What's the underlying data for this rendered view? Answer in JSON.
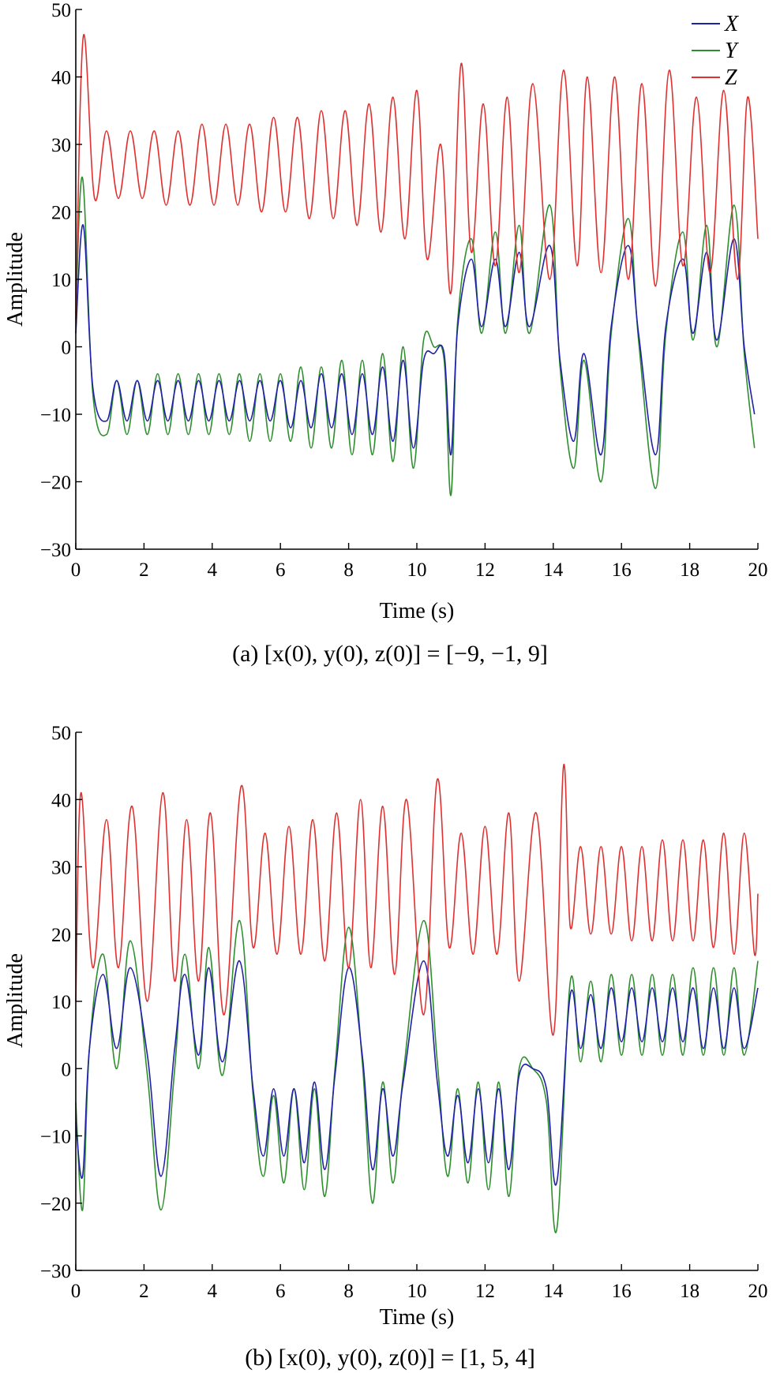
{
  "chart_data": [
    {
      "type": "line",
      "caption": "(a)  [x(0), y(0), z(0)] = [−9, −1, 9]",
      "xlabel": "Time (s)",
      "ylabel": "Amplitude",
      "xlim": [
        0,
        20
      ],
      "ylim": [
        -30,
        50
      ],
      "xticks": [
        "0",
        "2",
        "4",
        "6",
        "8",
        "10",
        "12",
        "14",
        "16",
        "18",
        "20"
      ],
      "yticks": [
        "−30",
        "−20",
        "−10",
        "0",
        "10",
        "20",
        "30",
        "40",
        "50"
      ],
      "grid": false,
      "legend_position": "top-right",
      "series": [
        {
          "name": "X",
          "color": "#2020a8",
          "x": [
            0,
            0.22,
            0.5,
            0.9,
            1.2,
            1.5,
            1.8,
            2.1,
            2.4,
            2.7,
            3.0,
            3.3,
            3.6,
            3.9,
            4.2,
            4.5,
            4.8,
            5.1,
            5.4,
            5.7,
            6.0,
            6.3,
            6.6,
            6.9,
            7.2,
            7.5,
            7.8,
            8.1,
            8.4,
            8.7,
            9.0,
            9.3,
            9.6,
            9.9,
            10.2,
            10.5,
            10.8,
            11.0,
            11.2,
            11.6,
            11.9,
            12.3,
            12.6,
            13.0,
            13.3,
            13.9,
            14.2,
            14.6,
            14.9,
            15.4,
            15.7,
            16.2,
            16.5,
            17.0,
            17.3,
            17.8,
            18.1,
            18.5,
            18.8,
            19.3,
            19.6,
            19.9
          ],
          "y": [
            2,
            18,
            -6,
            -11,
            -5,
            -11,
            -5,
            -11,
            -5,
            -11,
            -5,
            -11,
            -5,
            -11,
            -5,
            -11,
            -5,
            -11,
            -5,
            -11,
            -5,
            -12,
            -5,
            -12,
            -4,
            -12,
            -4,
            -13,
            -4,
            -13,
            -3,
            -14,
            -2,
            -15,
            -2,
            -1,
            -1,
            -16,
            3,
            13,
            3,
            13,
            3,
            14,
            3,
            15,
            -2,
            -14,
            -1,
            -16,
            3,
            15,
            2,
            -16,
            3,
            13,
            2,
            14,
            1,
            16,
            0,
            -10
          ]
        },
        {
          "name": "Y",
          "color": "#2f8f2f",
          "x": [
            0,
            0.2,
            0.5,
            0.9,
            1.2,
            1.5,
            1.8,
            2.1,
            2.4,
            2.7,
            3.0,
            3.3,
            3.6,
            3.9,
            4.2,
            4.5,
            4.8,
            5.1,
            5.4,
            5.7,
            6.0,
            6.3,
            6.6,
            6.9,
            7.2,
            7.5,
            7.8,
            8.1,
            8.4,
            8.7,
            9.0,
            9.3,
            9.6,
            9.9,
            10.2,
            10.5,
            10.8,
            11.0,
            11.2,
            11.6,
            11.9,
            12.3,
            12.6,
            13.0,
            13.3,
            13.9,
            14.2,
            14.6,
            14.9,
            15.4,
            15.7,
            16.2,
            16.5,
            17.0,
            17.3,
            17.8,
            18.1,
            18.5,
            18.8,
            19.3,
            19.6,
            19.9
          ],
          "y": [
            5,
            25,
            -7,
            -13,
            -5,
            -13,
            -5,
            -13,
            -4,
            -13,
            -4,
            -13,
            -4,
            -13,
            -4,
            -13,
            -4,
            -14,
            -4,
            -14,
            -4,
            -14,
            -3,
            -15,
            -3,
            -15,
            -2,
            -16,
            -2,
            -16,
            -1,
            -17,
            0,
            -18,
            1,
            0,
            -2,
            -22,
            4,
            16,
            2,
            17,
            2,
            18,
            2,
            21,
            -3,
            -18,
            -2,
            -20,
            2,
            19,
            1,
            -21,
            2,
            17,
            1,
            18,
            0,
            21,
            -1,
            -15
          ]
        },
        {
          "name": "Z",
          "color": "#e03030",
          "x": [
            0,
            0.22,
            0.55,
            0.9,
            1.25,
            1.6,
            1.95,
            2.3,
            2.65,
            3.0,
            3.35,
            3.7,
            4.05,
            4.4,
            4.75,
            5.1,
            5.45,
            5.8,
            6.15,
            6.5,
            6.85,
            7.2,
            7.55,
            7.9,
            8.25,
            8.6,
            8.95,
            9.3,
            9.65,
            10.0,
            10.3,
            10.7,
            11.0,
            11.3,
            11.6,
            11.95,
            12.3,
            12.65,
            13.0,
            13.4,
            13.9,
            14.3,
            14.7,
            15.0,
            15.4,
            15.8,
            16.2,
            16.6,
            17.0,
            17.4,
            17.8,
            18.2,
            18.6,
            19.0,
            19.4,
            19.7,
            20.0
          ],
          "y": [
            4,
            46,
            22,
            32,
            22,
            32,
            22,
            32,
            21,
            32,
            21,
            33,
            21,
            33,
            21,
            33,
            20,
            34,
            20,
            34,
            19,
            35,
            19,
            35,
            18,
            36,
            17,
            37,
            16,
            38,
            13,
            30,
            8,
            42,
            14,
            36,
            12,
            37,
            11,
            39,
            10,
            41,
            12,
            40,
            11,
            40,
            10,
            39,
            9,
            41,
            12,
            37,
            11,
            38,
            10,
            37,
            16
          ]
        }
      ]
    },
    {
      "type": "line",
      "caption": "(b) [x(0), y(0), z(0)] = [1, 5, 4]",
      "xlabel": "Time (s)",
      "ylabel": "Amplitude",
      "xlim": [
        0,
        20
      ],
      "ylim": [
        -30,
        50
      ],
      "xticks": [
        "0",
        "2",
        "4",
        "6",
        "8",
        "10",
        "12",
        "14",
        "16",
        "18",
        "20"
      ],
      "yticks": [
        "−30",
        "−20",
        "−10",
        "0",
        "10",
        "20",
        "30",
        "40",
        "50"
      ],
      "grid": false,
      "series": [
        {
          "name": "X",
          "color": "#2020a8",
          "x": [
            0,
            0.2,
            0.4,
            0.8,
            1.2,
            1.6,
            2.1,
            2.5,
            2.9,
            3.2,
            3.6,
            3.9,
            4.3,
            4.8,
            5.2,
            5.5,
            5.8,
            6.1,
            6.4,
            6.7,
            7.0,
            7.3,
            7.6,
            8.0,
            8.4,
            8.7,
            9.0,
            9.3,
            9.6,
            10.2,
            10.6,
            10.9,
            11.2,
            11.5,
            11.8,
            12.1,
            12.4,
            12.7,
            13.0,
            13.4,
            13.8,
            14.1,
            14.5,
            14.8,
            15.1,
            15.4,
            15.7,
            16.0,
            16.3,
            16.6,
            16.9,
            17.2,
            17.5,
            17.8,
            18.1,
            18.4,
            18.7,
            19.0,
            19.3,
            19.6,
            20.0
          ],
          "y": [
            -8,
            -16,
            3,
            14,
            3,
            15,
            2,
            -16,
            3,
            14,
            2,
            15,
            1,
            16,
            -3,
            -13,
            -3,
            -13,
            -3,
            -14,
            -2,
            -15,
            -1,
            15,
            2,
            -15,
            -3,
            -13,
            -2,
            16,
            -2,
            -13,
            -4,
            -14,
            -3,
            -14,
            -3,
            -15,
            -1,
            0,
            -3,
            -17,
            11,
            3,
            11,
            3,
            12,
            4,
            12,
            4,
            12,
            4,
            12,
            4,
            12,
            3,
            12,
            3,
            12,
            3,
            12
          ]
        },
        {
          "name": "Y",
          "color": "#2f8f2f",
          "x": [
            0,
            0.2,
            0.4,
            0.8,
            1.2,
            1.6,
            2.1,
            2.5,
            2.9,
            3.2,
            3.6,
            3.9,
            4.3,
            4.8,
            5.2,
            5.5,
            5.8,
            6.1,
            6.4,
            6.7,
            7.0,
            7.3,
            7.6,
            8.0,
            8.4,
            8.7,
            9.0,
            9.3,
            9.6,
            10.2,
            10.6,
            10.9,
            11.2,
            11.5,
            11.8,
            12.1,
            12.4,
            12.7,
            13.0,
            13.4,
            13.8,
            14.1,
            14.5,
            14.8,
            15.1,
            15.4,
            15.7,
            16.0,
            16.3,
            16.6,
            16.9,
            17.2,
            17.5,
            17.8,
            18.1,
            18.4,
            18.7,
            19.0,
            19.3,
            19.6,
            20.0
          ],
          "y": [
            -5,
            -21,
            3,
            17,
            0,
            19,
            -1,
            -21,
            0,
            17,
            0,
            18,
            -1,
            22,
            -4,
            -16,
            -4,
            -17,
            -3,
            -18,
            -3,
            -19,
            0,
            21,
            1,
            -20,
            -2,
            -17,
            -1,
            22,
            1,
            -16,
            -3,
            -17,
            -2,
            -18,
            -2,
            -19,
            0,
            0,
            -5,
            -24,
            13,
            1,
            13,
            1,
            14,
            2,
            14,
            2,
            14,
            2,
            14,
            2,
            15,
            2,
            15,
            2,
            15,
            2,
            16
          ]
        },
        {
          "name": "Z",
          "color": "#e03030",
          "x": [
            0,
            0.15,
            0.5,
            0.9,
            1.25,
            1.65,
            2.1,
            2.55,
            2.9,
            3.25,
            3.6,
            3.95,
            4.35,
            4.85,
            5.2,
            5.55,
            5.9,
            6.25,
            6.6,
            6.95,
            7.3,
            7.65,
            8.0,
            8.35,
            8.65,
            9.0,
            9.35,
            9.7,
            10.2,
            10.6,
            10.95,
            11.3,
            11.65,
            12.0,
            12.35,
            12.7,
            13.0,
            13.5,
            14.0,
            14.3,
            14.5,
            14.8,
            15.1,
            15.4,
            15.7,
            16.0,
            16.3,
            16.6,
            16.9,
            17.2,
            17.5,
            17.8,
            18.1,
            18.4,
            18.7,
            19.0,
            19.3,
            19.6,
            19.9,
            20.0
          ],
          "y": [
            10,
            41,
            15,
            37,
            15,
            39,
            10,
            41,
            13,
            37,
            13,
            38,
            8,
            42,
            18,
            35,
            17,
            36,
            17,
            37,
            16,
            38,
            15,
            40,
            15,
            39,
            14,
            40,
            8,
            43,
            18,
            35,
            17,
            36,
            17,
            38,
            13,
            38,
            5,
            45,
            21,
            33,
            20,
            33,
            20,
            33,
            19,
            33,
            19,
            34,
            19,
            34,
            19,
            34,
            18,
            35,
            17,
            35,
            17,
            26
          ]
        }
      ]
    }
  ]
}
